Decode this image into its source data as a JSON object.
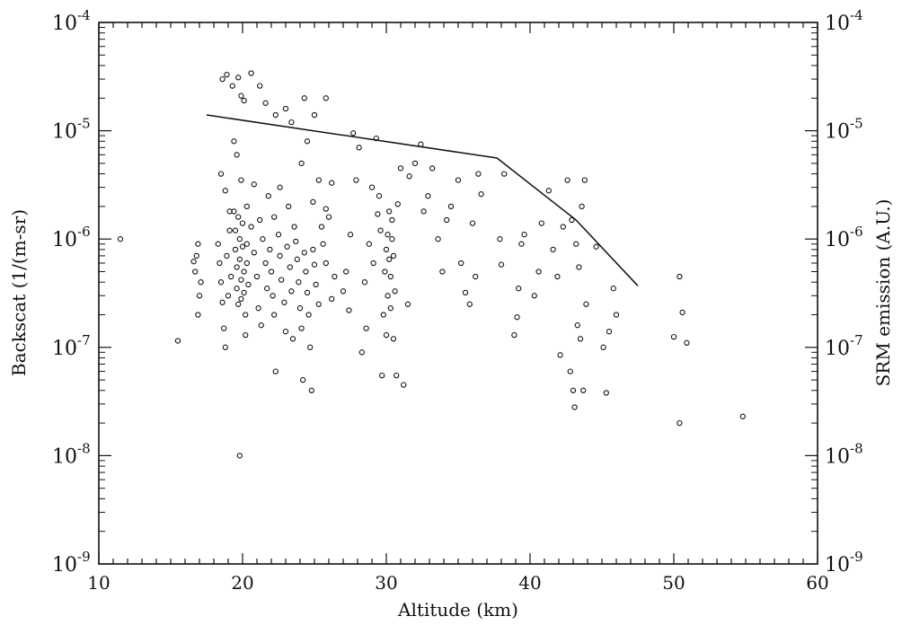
{
  "chart_data": {
    "type": "scatter",
    "title": "",
    "xlabel": "Altitude (km)",
    "ylabel": "Backscat (1/(m-sr)",
    "y2label": "SRM emission (A.U.)",
    "xlim": [
      10,
      60
    ],
    "ylim": [
      1e-09,
      0.0001
    ],
    "yscale": "log",
    "grid": false,
    "legend": "none",
    "x_ticks": [
      10,
      20,
      30,
      40,
      50,
      60
    ],
    "y_tick_exponents": [
      -9,
      -8,
      -7,
      -6,
      -5,
      -4
    ],
    "y_tick_base": "10",
    "series": [
      {
        "kind": "scatter",
        "marker": "open-circle",
        "points": [
          [
            11.5,
            1e-06
          ],
          [
            15.5,
            1.15e-07
          ],
          [
            19.8,
            1e-08
          ],
          [
            50.4,
            2e-08
          ],
          [
            54.8,
            2.3e-08
          ],
          [
            50.9,
            1.1e-07
          ],
          [
            50.0,
            1.25e-07
          ],
          [
            50.6,
            2.1e-07
          ],
          [
            50.4,
            4.5e-07
          ],
          [
            16.7,
            5e-07
          ],
          [
            16.8,
            7e-07
          ],
          [
            16.9,
            9e-07
          ],
          [
            17.0,
            3e-07
          ],
          [
            16.6,
            6.2e-07
          ],
          [
            17.1,
            4e-07
          ],
          [
            16.9,
            2e-07
          ],
          [
            18.6,
            3e-05
          ],
          [
            18.9,
            3.3e-05
          ],
          [
            19.3,
            2.6e-05
          ],
          [
            19.7,
            3.1e-05
          ],
          [
            19.9,
            2.1e-05
          ],
          [
            20.1,
            1.9e-05
          ],
          [
            20.6,
            3.4e-05
          ],
          [
            21.2,
            2.6e-05
          ],
          [
            21.6,
            1.8e-05
          ],
          [
            22.3,
            1.4e-05
          ],
          [
            23.0,
            1.6e-05
          ],
          [
            23.4,
            1.2e-05
          ],
          [
            24.3,
            2e-05
          ],
          [
            25.0,
            1.4e-05
          ],
          [
            25.8,
            2e-05
          ],
          [
            18.5,
            4e-06
          ],
          [
            18.8,
            2.8e-06
          ],
          [
            19.1,
            1.8e-06
          ],
          [
            19.4,
            8e-06
          ],
          [
            19.6,
            6e-06
          ],
          [
            19.9,
            3.5e-06
          ],
          [
            20.3,
            2e-06
          ],
          [
            20.8,
            3.2e-06
          ],
          [
            21.2,
            1.5e-06
          ],
          [
            21.8,
            2.5e-06
          ],
          [
            22.2,
            1.6e-06
          ],
          [
            22.6,
            3e-06
          ],
          [
            23.2,
            2e-06
          ],
          [
            23.6,
            1.3e-06
          ],
          [
            24.1,
            5e-06
          ],
          [
            24.5,
            8e-06
          ],
          [
            24.9,
            2.2e-06
          ],
          [
            25.3,
            3.5e-06
          ],
          [
            25.8,
            1.9e-06
          ],
          [
            26.2,
            3.3e-06
          ],
          [
            18.3,
            9e-07
          ],
          [
            18.4,
            6e-07
          ],
          [
            18.5,
            4e-07
          ],
          [
            18.6,
            2.6e-07
          ],
          [
            18.7,
            1.5e-07
          ],
          [
            18.8,
            1e-07
          ],
          [
            18.9,
            7e-07
          ],
          [
            19.0,
            3e-07
          ],
          [
            19.1,
            1.2e-06
          ],
          [
            19.2,
            4.5e-07
          ],
          [
            19.4,
            1.8e-06
          ],
          [
            19.5,
            1.2e-06
          ],
          [
            19.5,
            8e-07
          ],
          [
            19.6,
            5.5e-07
          ],
          [
            19.6,
            3.5e-07
          ],
          [
            19.7,
            2.5e-07
          ],
          [
            19.7,
            1.6e-06
          ],
          [
            19.8,
            1e-06
          ],
          [
            19.8,
            6.5e-07
          ],
          [
            19.9,
            4.2e-07
          ],
          [
            19.9,
            2.8e-07
          ],
          [
            20.0,
            1.4e-06
          ],
          [
            20.0,
            8.5e-07
          ],
          [
            20.1,
            5e-07
          ],
          [
            20.1,
            3.2e-07
          ],
          [
            20.2,
            2e-07
          ],
          [
            20.2,
            1.3e-07
          ],
          [
            20.3,
            9e-07
          ],
          [
            20.3,
            6e-07
          ],
          [
            20.4,
            3.8e-07
          ],
          [
            20.6,
            1.3e-06
          ],
          [
            20.8,
            7.5e-07
          ],
          [
            21.0,
            4.5e-07
          ],
          [
            21.1,
            2.3e-07
          ],
          [
            21.3,
            1.6e-07
          ],
          [
            21.4,
            1e-06
          ],
          [
            21.6,
            6e-07
          ],
          [
            21.7,
            3.5e-07
          ],
          [
            21.9,
            8e-07
          ],
          [
            22.0,
            5e-07
          ],
          [
            22.1,
            3e-07
          ],
          [
            22.2,
            2e-07
          ],
          [
            22.3,
            6e-08
          ],
          [
            22.5,
            1.1e-06
          ],
          [
            22.6,
            7e-07
          ],
          [
            22.7,
            4.2e-07
          ],
          [
            22.9,
            2.6e-07
          ],
          [
            23.0,
            1.4e-07
          ],
          [
            23.1,
            8.5e-07
          ],
          [
            23.3,
            5.5e-07
          ],
          [
            23.4,
            3.3e-07
          ],
          [
            23.5,
            1.2e-07
          ],
          [
            23.7,
            9.5e-07
          ],
          [
            23.8,
            6.5e-07
          ],
          [
            23.9,
            4e-07
          ],
          [
            24.0,
            2.3e-07
          ],
          [
            24.1,
            1.5e-07
          ],
          [
            24.2,
            5e-08
          ],
          [
            24.3,
            7.5e-07
          ],
          [
            24.4,
            5e-07
          ],
          [
            24.5,
            3.2e-07
          ],
          [
            24.6,
            2e-07
          ],
          [
            24.7,
            1e-07
          ],
          [
            24.8,
            4e-08
          ],
          [
            24.9,
            8e-07
          ],
          [
            25.0,
            5.8e-07
          ],
          [
            25.1,
            3.8e-07
          ],
          [
            25.3,
            2.5e-07
          ],
          [
            25.5,
            1.3e-06
          ],
          [
            25.6,
            9e-07
          ],
          [
            25.8,
            6e-07
          ],
          [
            26.0,
            1.6e-06
          ],
          [
            26.2,
            2.8e-07
          ],
          [
            26.4,
            4.5e-07
          ],
          [
            27.0,
            3.3e-07
          ],
          [
            27.2,
            5e-07
          ],
          [
            27.4,
            2.2e-07
          ],
          [
            27.5,
            1.1e-06
          ],
          [
            27.7,
            9.5e-06
          ],
          [
            27.9,
            3.5e-06
          ],
          [
            28.1,
            7e-06
          ],
          [
            28.3,
            9e-08
          ],
          [
            28.5,
            4e-07
          ],
          [
            28.6,
            1.5e-07
          ],
          [
            28.8,
            9e-07
          ],
          [
            29.0,
            3e-06
          ],
          [
            29.1,
            6e-07
          ],
          [
            29.3,
            8.5e-06
          ],
          [
            29.4,
            1.7e-06
          ],
          [
            29.5,
            2.5e-06
          ],
          [
            29.6,
            1.2e-06
          ],
          [
            29.7,
            5.5e-08
          ],
          [
            29.8,
            2e-07
          ],
          [
            29.9,
            5e-07
          ],
          [
            30.0,
            8e-07
          ],
          [
            30.0,
            1.3e-07
          ],
          [
            30.1,
            1.1e-06
          ],
          [
            30.1,
            3e-07
          ],
          [
            30.2,
            1.8e-06
          ],
          [
            30.2,
            6.5e-07
          ],
          [
            30.3,
            4.5e-07
          ],
          [
            30.3,
            2.3e-07
          ],
          [
            30.4,
            1e-06
          ],
          [
            30.4,
            1.5e-06
          ],
          [
            30.5,
            7e-07
          ],
          [
            30.5,
            1.2e-07
          ],
          [
            30.6,
            3.3e-07
          ],
          [
            30.7,
            5.5e-08
          ],
          [
            30.8,
            2.1e-06
          ],
          [
            31.0,
            4.5e-06
          ],
          [
            31.2,
            4.5e-08
          ],
          [
            31.5,
            2.5e-07
          ],
          [
            31.6,
            3.8e-06
          ],
          [
            32.0,
            5e-06
          ],
          [
            32.4,
            7.5e-06
          ],
          [
            32.6,
            1.8e-06
          ],
          [
            32.9,
            2.5e-06
          ],
          [
            33.2,
            4.5e-06
          ],
          [
            33.6,
            1e-06
          ],
          [
            33.9,
            5e-07
          ],
          [
            34.2,
            1.5e-06
          ],
          [
            34.5,
            2e-06
          ],
          [
            35.0,
            3.5e-06
          ],
          [
            35.2,
            6e-07
          ],
          [
            35.5,
            3.2e-07
          ],
          [
            35.8,
            2.5e-07
          ],
          [
            36.0,
            1.4e-06
          ],
          [
            36.2,
            4.5e-07
          ],
          [
            36.4,
            4e-06
          ],
          [
            36.6,
            2.6e-06
          ],
          [
            37.9,
            1e-06
          ],
          [
            38.0,
            5.8e-07
          ],
          [
            38.2,
            4e-06
          ],
          [
            38.9,
            1.3e-07
          ],
          [
            39.1,
            1.9e-07
          ],
          [
            39.2,
            3.5e-07
          ],
          [
            39.4,
            9e-07
          ],
          [
            39.6,
            1.1e-06
          ],
          [
            40.3,
            3e-07
          ],
          [
            40.6,
            5e-07
          ],
          [
            40.8,
            1.4e-06
          ],
          [
            41.3,
            2.8e-06
          ],
          [
            41.6,
            8e-07
          ],
          [
            41.9,
            4.5e-07
          ],
          [
            42.1,
            8.5e-08
          ],
          [
            42.3,
            1.3e-06
          ],
          [
            42.6,
            3.5e-06
          ],
          [
            42.8,
            6e-08
          ],
          [
            42.9,
            1.5e-06
          ],
          [
            43.0,
            4e-08
          ],
          [
            43.1,
            2.8e-08
          ],
          [
            43.2,
            9e-07
          ],
          [
            43.3,
            1.6e-07
          ],
          [
            43.4,
            5.5e-07
          ],
          [
            43.5,
            1.2e-07
          ],
          [
            43.6,
            2e-06
          ],
          [
            43.7,
            4e-08
          ],
          [
            43.8,
            3.5e-06
          ],
          [
            43.9,
            2.5e-07
          ],
          [
            44.6,
            8.5e-07
          ],
          [
            45.1,
            1e-07
          ],
          [
            45.3,
            3.8e-08
          ],
          [
            45.5,
            1.4e-07
          ],
          [
            45.8,
            3.5e-07
          ],
          [
            46.0,
            2e-07
          ]
        ]
      },
      {
        "kind": "line",
        "points": [
          [
            17.5,
            1.4e-05
          ],
          [
            37.7,
            5.6e-06
          ],
          [
            43.2,
            1.5e-06
          ],
          [
            47.5,
            3.7e-07
          ]
        ]
      }
    ]
  }
}
